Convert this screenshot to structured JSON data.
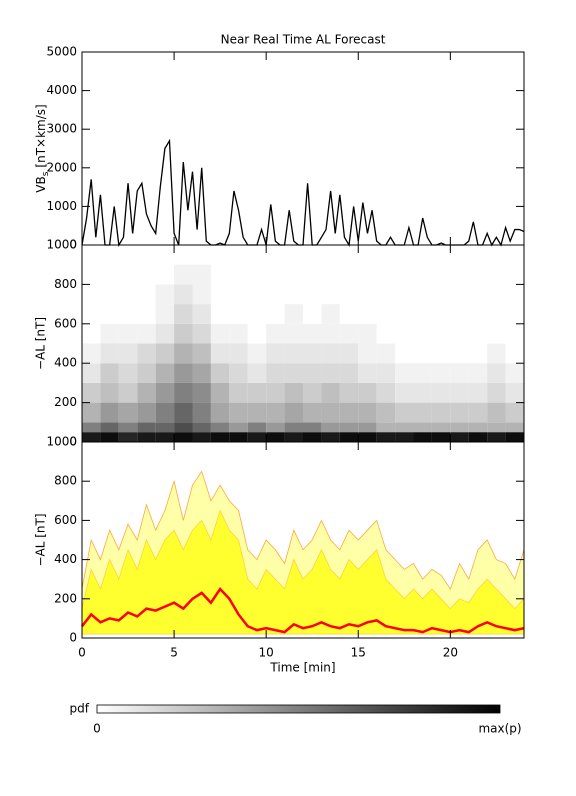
{
  "chart_data": [
    {
      "type": "line",
      "title": "Near Real Time AL Forecast",
      "ylabel": {
        "main": "VB",
        "sub": "s",
        "unit": "[nT×km/s]"
      },
      "xlim": [
        0,
        24
      ],
      "xticks": [
        0,
        5,
        10,
        15,
        20
      ],
      "ylim": [
        0,
        5000
      ],
      "yticks": [
        0,
        1000,
        2000,
        3000,
        4000,
        5000
      ],
      "x": [
        0,
        0.25,
        0.5,
        0.75,
        1,
        1.25,
        1.5,
        1.75,
        2,
        2.25,
        2.5,
        2.75,
        3,
        3.25,
        3.5,
        3.75,
        4,
        4.25,
        4.5,
        4.75,
        5,
        5.25,
        5.5,
        5.75,
        6,
        6.25,
        6.5,
        6.75,
        7,
        7.25,
        7.5,
        7.75,
        8,
        8.25,
        8.5,
        8.75,
        9,
        9.25,
        9.5,
        9.75,
        10,
        10.25,
        10.5,
        10.75,
        11,
        11.25,
        11.5,
        11.75,
        12,
        12.25,
        12.5,
        12.75,
        13,
        13.25,
        13.5,
        13.75,
        14,
        14.25,
        14.5,
        14.75,
        15,
        15.25,
        15.5,
        15.75,
        16,
        16.25,
        16.5,
        16.75,
        17,
        17.25,
        17.5,
        17.75,
        18,
        18.25,
        18.5,
        18.75,
        19,
        19.25,
        19.5,
        19.75,
        20,
        20.25,
        20.5,
        20.75,
        21,
        21.25,
        21.5,
        21.75,
        22,
        22.25,
        22.5,
        22.75,
        23,
        23.25,
        23.5,
        23.75,
        24
      ],
      "series": [
        {
          "color": "#000000",
          "values": [
            0,
            700,
            1700,
            200,
            1300,
            0,
            0,
            1000,
            0,
            200,
            1600,
            300,
            1400,
            1600,
            800,
            500,
            300,
            1500,
            2500,
            2700,
            300,
            0,
            2150,
            900,
            1900,
            400,
            2000,
            100,
            0,
            0,
            50,
            0,
            300,
            1400,
            900,
            200,
            0,
            0,
            0,
            400,
            0,
            1050,
            100,
            0,
            0,
            900,
            100,
            0,
            0,
            1600,
            0,
            0,
            200,
            400,
            1400,
            300,
            1300,
            200,
            0,
            1000,
            100,
            1100,
            300,
            900,
            100,
            0,
            0,
            200,
            0,
            0,
            0,
            450,
            0,
            0,
            700,
            200,
            0,
            0,
            50,
            0,
            0,
            0,
            0,
            0,
            100,
            600,
            0,
            0,
            300,
            0,
            200,
            0,
            450,
            100,
            400,
            400,
            350
          ]
        }
      ]
    },
    {
      "type": "heatmap",
      "ylabel": "−AL [nT]",
      "xlim": [
        0,
        24
      ],
      "xticks": [
        0,
        5,
        10,
        15,
        20
      ],
      "ylim": [
        0,
        1000
      ],
      "yticks": [
        0,
        200,
        400,
        600,
        800,
        1000
      ],
      "x_edges": [
        0,
        1,
        2,
        3,
        4,
        5,
        6,
        7,
        8,
        9,
        10,
        11,
        12,
        13,
        14,
        15,
        16,
        17,
        18,
        19,
        20,
        21,
        22,
        23,
        24
      ],
      "y_edges": [
        0,
        50,
        100,
        200,
        300,
        400,
        500,
        600,
        700,
        800,
        900
      ],
      "z": [
        [
          0.9,
          0.95,
          0.85,
          0.9,
          0.9,
          0.95,
          0.9,
          0.95,
          0.95,
          0.9,
          0.95,
          0.9,
          0.95,
          0.9,
          0.95,
          0.95,
          0.9,
          0.9,
          0.95,
          0.95,
          0.9,
          0.95,
          0.9,
          0.95
        ],
        [
          0.5,
          0.6,
          0.5,
          0.6,
          0.6,
          0.7,
          0.6,
          0.5,
          0.4,
          0.5,
          0.4,
          0.5,
          0.5,
          0.4,
          0.4,
          0.4,
          0.3,
          0.3,
          0.3,
          0.3,
          0.3,
          0.3,
          0.3,
          0.3
        ],
        [
          0.3,
          0.4,
          0.35,
          0.4,
          0.5,
          0.6,
          0.5,
          0.35,
          0.3,
          0.3,
          0.3,
          0.35,
          0.3,
          0.3,
          0.3,
          0.3,
          0.25,
          0.2,
          0.2,
          0.2,
          0.2,
          0.2,
          0.25,
          0.2
        ],
        [
          0.2,
          0.25,
          0.2,
          0.3,
          0.4,
          0.5,
          0.45,
          0.3,
          0.2,
          0.2,
          0.2,
          0.25,
          0.2,
          0.25,
          0.2,
          0.2,
          0.15,
          0.1,
          0.1,
          0.1,
          0.1,
          0.1,
          0.15,
          0.1
        ],
        [
          0.1,
          0.2,
          0.15,
          0.2,
          0.3,
          0.4,
          0.35,
          0.2,
          0.15,
          0.1,
          0.15,
          0.15,
          0.15,
          0.15,
          0.15,
          0.1,
          0.1,
          0.05,
          0.05,
          0.05,
          0.05,
          0.05,
          0.1,
          0.05
        ],
        [
          0.05,
          0.1,
          0.1,
          0.15,
          0.2,
          0.3,
          0.25,
          0.1,
          0.1,
          0.05,
          0.1,
          0.1,
          0.1,
          0.1,
          0.1,
          0.05,
          0.05,
          0,
          0,
          0,
          0,
          0,
          0.05,
          0
        ],
        [
          0,
          0.05,
          0.05,
          0.05,
          0.1,
          0.2,
          0.15,
          0.05,
          0.05,
          0,
          0.05,
          0.05,
          0.05,
          0.05,
          0.05,
          0.05,
          0,
          0,
          0,
          0,
          0,
          0,
          0,
          0
        ],
        [
          0,
          0,
          0,
          0,
          0.05,
          0.15,
          0.1,
          0,
          0,
          0,
          0,
          0.05,
          0,
          0.05,
          0,
          0,
          0,
          0,
          0,
          0,
          0,
          0,
          0,
          0
        ],
        [
          0,
          0,
          0,
          0,
          0.05,
          0.1,
          0.05,
          0,
          0,
          0,
          0,
          0,
          0,
          0,
          0,
          0,
          0,
          0,
          0,
          0,
          0,
          0,
          0,
          0
        ],
        [
          0,
          0,
          0,
          0,
          0,
          0.05,
          0.05,
          0,
          0,
          0,
          0,
          0,
          0,
          0,
          0,
          0,
          0,
          0,
          0,
          0,
          0,
          0,
          0,
          0
        ]
      ],
      "colorbar": {
        "title": "pdf",
        "min_label": "0",
        "max_label": "max(p)"
      }
    },
    {
      "type": "band",
      "ylabel": "−AL [nT]",
      "xlabel": "Time [min]",
      "xlim": [
        0,
        24
      ],
      "xticks": [
        0,
        5,
        10,
        15,
        20
      ],
      "ylim": [
        0,
        1000
      ],
      "yticks": [
        0,
        200,
        400,
        600,
        800,
        1000
      ],
      "x": [
        0,
        0.5,
        1,
        1.5,
        2,
        2.5,
        3,
        3.5,
        4,
        4.5,
        5,
        5.5,
        6,
        6.5,
        7,
        7.5,
        8,
        8.5,
        9,
        9.5,
        10,
        10.5,
        11,
        11.5,
        12,
        12.5,
        13,
        13.5,
        14,
        14.5,
        15,
        15.5,
        16,
        16.5,
        17,
        17.5,
        18,
        18.5,
        19,
        19.5,
        20,
        20.5,
        21,
        21.5,
        22,
        22.5,
        23,
        23.5,
        24
      ],
      "lower": [
        20,
        20,
        20,
        20,
        20,
        20,
        20,
        20,
        20,
        20,
        20,
        20,
        20,
        20,
        20,
        20,
        20,
        20,
        20,
        20,
        20,
        20,
        20,
        20,
        20,
        20,
        20,
        20,
        20,
        20,
        20,
        20,
        20,
        20,
        20,
        20,
        20,
        20,
        20,
        20,
        20,
        20,
        20,
        20,
        20,
        20,
        20,
        20,
        20
      ],
      "bands": [
        {
          "color": "#ffffa8",
          "edge": "#ffa640",
          "upper": [
            250,
            500,
            400,
            550,
            450,
            580,
            500,
            680,
            550,
            650,
            800,
            600,
            780,
            850,
            700,
            780,
            700,
            650,
            450,
            400,
            500,
            450,
            380,
            550,
            450,
            500,
            600,
            500,
            450,
            550,
            500,
            550,
            600,
            450,
            400,
            350,
            380,
            300,
            350,
            320,
            250,
            380,
            300,
            450,
            500,
            400,
            380,
            300,
            450
          ]
        },
        {
          "color": "#ffff30",
          "edge": "#ffd040",
          "upper": [
            150,
            350,
            250,
            400,
            300,
            450,
            350,
            500,
            400,
            500,
            550,
            450,
            550,
            600,
            500,
            650,
            550,
            500,
            300,
            250,
            350,
            300,
            250,
            400,
            300,
            350,
            450,
            350,
            300,
            400,
            350,
            400,
            450,
            300,
            250,
            200,
            250,
            200,
            250,
            200,
            150,
            200,
            180,
            250,
            300,
            250,
            200,
            150,
            200
          ]
        }
      ],
      "line": {
        "color": "#ff0000",
        "values": [
          60,
          120,
          80,
          100,
          90,
          130,
          110,
          150,
          140,
          160,
          180,
          150,
          200,
          230,
          180,
          250,
          200,
          120,
          60,
          40,
          50,
          40,
          30,
          70,
          50,
          60,
          80,
          60,
          50,
          70,
          60,
          80,
          90,
          60,
          50,
          40,
          40,
          30,
          50,
          40,
          30,
          40,
          30,
          60,
          80,
          60,
          50,
          40,
          50
        ]
      }
    }
  ]
}
